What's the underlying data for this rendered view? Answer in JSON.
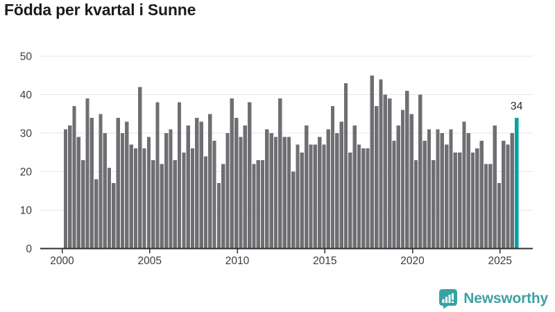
{
  "title": "Födda per kvartal i Sunne",
  "logo": {
    "text": "Newsworthy",
    "icon": "newsworthy-speech-bubble-chart"
  },
  "chart_data": {
    "type": "bar",
    "title": "Födda per kvartal i Sunne",
    "x_start": {
      "year": 2000,
      "quarter": 1
    },
    "x_unit": "quarter",
    "x_tick_labels": [
      "2000",
      "2005",
      "2010",
      "2015",
      "2020",
      "2025"
    ],
    "y_ticks": [
      0,
      10,
      20,
      30,
      40,
      50
    ],
    "ylim": [
      0,
      50
    ],
    "grid": true,
    "legend": "none",
    "series": [
      {
        "name": "Födda",
        "values": [
          31,
          32,
          37,
          29,
          23,
          39,
          34,
          18,
          35,
          30,
          21,
          17,
          34,
          30,
          33,
          27,
          26,
          42,
          26,
          29,
          23,
          38,
          22,
          30,
          31,
          23,
          38,
          25,
          32,
          26,
          34,
          33,
          24,
          35,
          28,
          17,
          22,
          30,
          39,
          34,
          29,
          32,
          38,
          22,
          23,
          23,
          31,
          30,
          29,
          39,
          29,
          29,
          20,
          27,
          25,
          32,
          27,
          27,
          29,
          27,
          31,
          37,
          30,
          33,
          43,
          25,
          32,
          27,
          26,
          26,
          45,
          37,
          44,
          40,
          39,
          28,
          32,
          36,
          41,
          35,
          23,
          40,
          28,
          31,
          23,
          31,
          30,
          27,
          31,
          25,
          25,
          33,
          30,
          25,
          26,
          28,
          22,
          22,
          32,
          17,
          28,
          27,
          30,
          34
        ]
      }
    ],
    "highlight_index": 103,
    "annotation": {
      "text": "34",
      "index": 103
    },
    "colors": {
      "bar": "#6f6e72",
      "highlight": "#00a2a6",
      "grid": "#e4e4e4",
      "axis": "#2f2f2f",
      "tick_text": "#3b3b3b",
      "annotation_text": "#2b2b2b"
    }
  }
}
